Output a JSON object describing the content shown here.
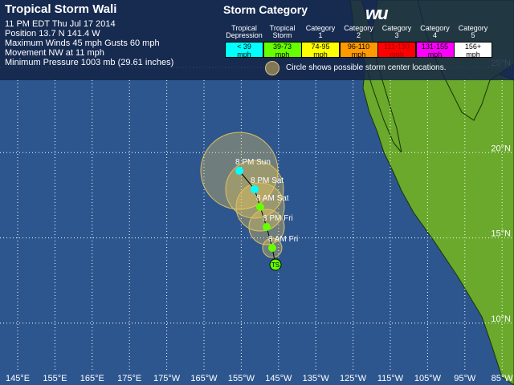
{
  "header": {
    "title": "Tropical Storm Wali",
    "lines": [
      "11 PM EDT Thu Jul 17 2014",
      "Position 13.7 N 141.4 W",
      "Maximum Winds 45 mph  Gusts 60 mph",
      "Movement NW at 11 mph",
      "Minimum Pressure 1003 mb (29.61 inches)"
    ]
  },
  "legend": {
    "title": "Storm Category",
    "logo": "wu",
    "note": "Circle shows possible storm center locations.",
    "categories": [
      {
        "name": [
          "Tropical",
          "Depression"
        ],
        "range": "< 39",
        "unit": "mph",
        "color": "#00ffff"
      },
      {
        "name": [
          "Tropical",
          "Storm"
        ],
        "range": "39-73",
        "unit": "mph",
        "color": "#66ff00"
      },
      {
        "name": [
          "Category",
          "1"
        ],
        "range": "74-95",
        "unit": "mph",
        "color": "#ffff00"
      },
      {
        "name": [
          "Category",
          "2"
        ],
        "range": "96-110",
        "unit": "mph",
        "color": "#ff9900"
      },
      {
        "name": [
          "Category",
          "3"
        ],
        "range": "111-130",
        "unit": "mph",
        "color": "#ff0000"
      },
      {
        "name": [
          "Category",
          "4"
        ],
        "range": "131-155",
        "unit": "mph",
        "color": "#ff00ff"
      },
      {
        "name": [
          "Category",
          "5"
        ],
        "range": "156+",
        "unit": "mph",
        "color": "#ffffff"
      }
    ]
  },
  "map": {
    "current": "TS",
    "forecast": [
      "8 AM Fri",
      "8 PM Fri",
      "8 AM Sat",
      "8 PM Sat",
      "8 PM Sun"
    ],
    "longitudes": [
      "145°E",
      "155°E",
      "165°E",
      "175°E",
      "175°W",
      "165°W",
      "155°W",
      "145°W",
      "135°W",
      "125°W",
      "115°W",
      "105°W",
      "95°W",
      "85°W"
    ],
    "latitudes": [
      "25°N",
      "20°N",
      "15°N",
      "10°N"
    ]
  }
}
